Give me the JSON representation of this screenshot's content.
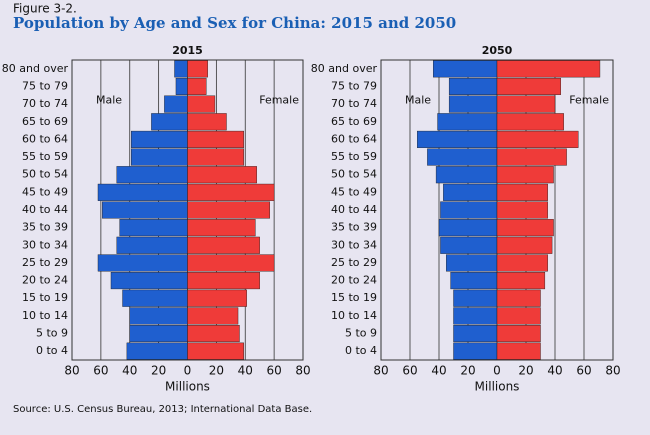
{
  "figure_label": "Figure 3-2.",
  "title": "Population by Age and Sex for China: 2015 and 2050",
  "source": "Source: U.S. Census Bureau, 2013; International Data Base.",
  "chart_data": [
    {
      "type": "pyramid",
      "title": "2015",
      "categories": [
        "80 and over",
        "75 to 79",
        "70 to 74",
        "65 to 69",
        "60 to 64",
        "55 to 59",
        "50 to 54",
        "45 to 49",
        "40 to 44",
        "35 to 39",
        "30 to 34",
        "25 to 29",
        "20 to 24",
        "15 to 19",
        "10 to 14",
        "5 to 9",
        "0 to 4"
      ],
      "series": [
        {
          "name": "Male",
          "color": "#1f5fcf",
          "values": [
            9,
            8,
            16,
            25,
            39,
            39,
            49,
            62,
            59,
            47,
            49,
            62,
            53,
            45,
            40,
            40,
            42
          ]
        },
        {
          "name": "Female",
          "color": "#ef3b39",
          "values": [
            14,
            13,
            19,
            27,
            39,
            39,
            48,
            60,
            57,
            47,
            50,
            60,
            50,
            41,
            35,
            36,
            39
          ]
        }
      ],
      "xlim": [
        -80,
        80
      ],
      "xticks": [
        {
          "value": -80,
          "label": "80"
        },
        {
          "value": -60,
          "label": "60"
        },
        {
          "value": -40,
          "label": "40"
        },
        {
          "value": -20,
          "label": "20"
        },
        0,
        20,
        40,
        60,
        80
      ],
      "xlabel": "Millions",
      "grid": true
    },
    {
      "type": "pyramid",
      "title": "2050",
      "categories": [
        "80 and over",
        "75 to 79",
        "70 to 74",
        "65 to 69",
        "60 to 64",
        "55 to 59",
        "50 to 54",
        "45 to 49",
        "40 to 44",
        "35 to 39",
        "30 to 34",
        "25 to 29",
        "20 to 24",
        "15 to 19",
        "10 to 14",
        "5 to 9",
        "0 to 4"
      ],
      "series": [
        {
          "name": "Male",
          "color": "#1f5fcf",
          "values": [
            44,
            33,
            33,
            41,
            55,
            48,
            42,
            37,
            39,
            40,
            39,
            35,
            32,
            30,
            30,
            30,
            30
          ]
        },
        {
          "name": "Female",
          "color": "#ef3b39",
          "values": [
            71,
            44,
            40,
            46,
            56,
            48,
            39,
            35,
            35,
            39,
            38,
            35,
            33,
            30,
            30,
            30,
            30
          ]
        }
      ],
      "xlim": [
        -80,
        80
      ],
      "xticks": [
        {
          "value": -80,
          "label": "80"
        },
        {
          "value": -60,
          "label": "60"
        },
        {
          "value": -40,
          "label": "40"
        },
        {
          "value": -20,
          "label": "20"
        },
        0,
        20,
        40,
        60,
        80
      ],
      "xlabel": "Millions",
      "grid": true
    }
  ]
}
